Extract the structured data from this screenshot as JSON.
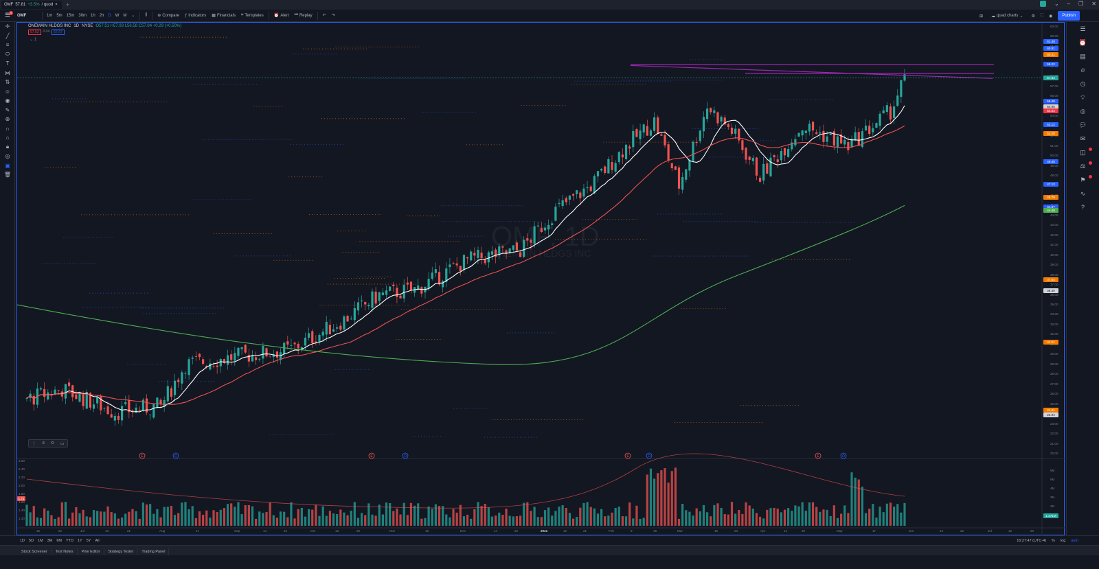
{
  "browser_tab": {
    "symbol": "OMF",
    "price": "57.81",
    "change": "+3.5%",
    "extra": "/ quod"
  },
  "toolbar": {
    "symbol": "OMF",
    "notification_count": "9",
    "intervals": [
      "1m",
      "5m",
      "15m",
      "30m",
      "1h",
      "2h",
      "D",
      "W",
      "M"
    ],
    "active_interval": "D",
    "buttons": [
      "Compare",
      "Indicators",
      "Financials",
      "Templates",
      "Alert",
      "Replay"
    ],
    "layout_name": "quad charts",
    "publish_label": "Publish"
  },
  "legend": {
    "name": "ONEMAIN HLDGS INC",
    "interval": "1D",
    "exchange": "NYSE",
    "ohlc": "O57.51 H57.93 L56.58 C57.84 +0.29 (+0.50%)",
    "sell_price": "57.53",
    "spread": "0.04",
    "buy_price": "57.57",
    "collapse_label": "1"
  },
  "watermark": {
    "symbol": "OMF, 1D",
    "name": "ONEMAIN HLDGS INC"
  },
  "price_axis": [
    "63.00",
    "62.00",
    "61.00",
    "60.00",
    "59.00",
    "58.00",
    "57.00",
    "56.00",
    "55.00",
    "54.00",
    "53.00",
    "52.00",
    "51.00",
    "50.00",
    "49.00",
    "48.00",
    "47.00",
    "46.00",
    "45.00",
    "44.00",
    "43.00",
    "42.00",
    "41.00",
    "40.00",
    "39.00",
    "38.00",
    "37.00",
    "36.00",
    "35.00",
    "34.00",
    "33.00",
    "32.00",
    "31.00",
    "30.00",
    "29.00",
    "28.00",
    "27.00",
    "26.00",
    "25.00",
    "24.00",
    "23.00",
    "22.00",
    "21.00",
    "20.00"
  ],
  "price_labels": [
    {
      "text": "61.48",
      "color": "#2962ff"
    },
    {
      "text": "60.81",
      "color": "#2962ff"
    },
    {
      "text": "60.21",
      "color": "#f57c00"
    },
    {
      "text": "59.22",
      "color": "#2962ff"
    },
    {
      "text": "57.84",
      "color": "#26a69a"
    },
    {
      "text": "55.48",
      "color": "#2962ff"
    },
    {
      "text": "54.95",
      "color": "#d1d4dc"
    },
    {
      "text": "54.54",
      "color": "#f23645"
    },
    {
      "text": "53.12",
      "color": "#2962ff"
    },
    {
      "text": "52.28",
      "color": "#f57c00"
    },
    {
      "text": "49.40",
      "color": "#2962ff"
    },
    {
      "text": "47.12",
      "color": "#2962ff"
    },
    {
      "text": "45.79",
      "color": "#f57c00"
    },
    {
      "text": "44.87",
      "color": "#2962ff"
    },
    {
      "text": "44.49",
      "color": "#4caf50"
    },
    {
      "text": "37.54",
      "color": "#f57c00"
    },
    {
      "text": "36.40",
      "color": "#d1d4dc"
    },
    {
      "text": "31.21",
      "color": "#f57c00"
    },
    {
      "text": "24.41",
      "color": "#f57c00"
    },
    {
      "text": "23.94",
      "color": "#d1d4dc"
    }
  ],
  "volume_axis": [
    "2.60",
    "2.40",
    "2.20",
    "2.00",
    "1.80",
    "1.60",
    "1.40",
    "1.20"
  ],
  "volume_axis_right": [
    "6M",
    "5M",
    "4M",
    "3M",
    "2M",
    "1M"
  ],
  "volume_badge": "1.71",
  "volume_right_badge": "1.371M",
  "time_axis": [
    "15",
    "22",
    "Jul",
    "13",
    "21",
    "Aug",
    "17",
    "Sep",
    "14",
    "22",
    "Oct",
    "13",
    "20",
    "Nov",
    "16",
    "Dec",
    "14",
    "22",
    "2021",
    "12",
    "21",
    "Feb",
    "9",
    "16",
    "Mar",
    "15",
    "23",
    "Apr",
    "12",
    "20",
    "May",
    "17",
    "Jun",
    "14",
    "22",
    "Jul",
    "12",
    "20"
  ],
  "earnings_markers": [
    "E",
    "D",
    "E",
    "D",
    "E",
    "D",
    "E",
    "D"
  ],
  "bottom": {
    "ranges": [
      "1D",
      "5D",
      "1M",
      "3M",
      "6M",
      "YTD",
      "1Y",
      "5Y",
      "All"
    ],
    "time": "16:27:47 (UTC-4)",
    "right_opts": [
      "%",
      "log",
      "auto"
    ]
  },
  "panel_tabs": [
    "Stock Screener",
    "Text Notes",
    "Pine Editor",
    "Strategy Tester",
    "Trading Panel"
  ],
  "colors": {
    "up": "#26a69a",
    "down": "#ef5350",
    "bg": "#131722",
    "accent": "#2962ff",
    "ma_fast": "#ffffff",
    "ma_mid": "#ef5350",
    "ma_slow": "#4caf50",
    "trendline": "#9c27b0"
  }
}
